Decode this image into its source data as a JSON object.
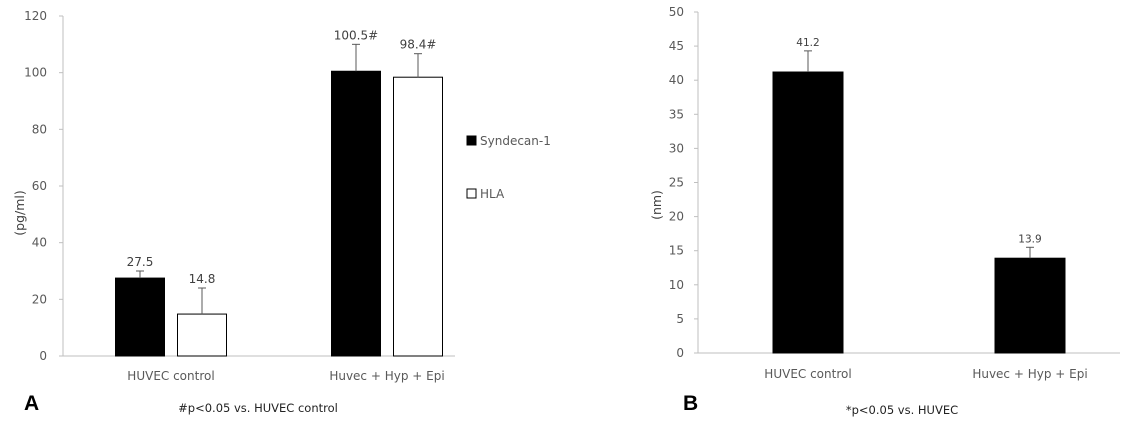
{
  "panels": [
    {
      "letter": "A",
      "footnote": "#p<0.05 vs. HUVEC control"
    },
    {
      "letter": "B",
      "footnote": "*p<0.05 vs. HUVEC"
    }
  ],
  "chart_data": [
    {
      "type": "bar",
      "ylabel": "(pg/ml)",
      "ylim": [
        0,
        120
      ],
      "yticks": [
        0,
        20,
        40,
        60,
        80,
        100,
        120
      ],
      "categories": [
        "HUVEC control",
        "Huvec + Hyp + Epi"
      ],
      "legend_position": "right",
      "series": [
        {
          "name": "Syndecan-1",
          "color": "#000000",
          "values": [
            27.5,
            100.5
          ],
          "error": [
            2.5,
            9.5
          ],
          "labels": [
            "27.5",
            "100.5#"
          ]
        },
        {
          "name": "HLA",
          "color": "#ffffff",
          "values": [
            14.8,
            98.4
          ],
          "error": [
            9.2,
            8.3
          ],
          "labels": [
            "14.8",
            "98.4#"
          ]
        }
      ]
    },
    {
      "type": "bar",
      "ylabel": "(nm)",
      "ylim": [
        0,
        50
      ],
      "yticks": [
        0,
        5,
        10,
        15,
        20,
        25,
        30,
        35,
        40,
        45,
        50
      ],
      "categories": [
        "HUVEC control",
        "Huvec + Hyp + Epi"
      ],
      "series": [
        {
          "color": "#000000",
          "values": [
            41.2,
            13.9
          ],
          "error": [
            3.1,
            1.6
          ],
          "labels": [
            "41.2",
            "13.9"
          ]
        }
      ]
    }
  ]
}
